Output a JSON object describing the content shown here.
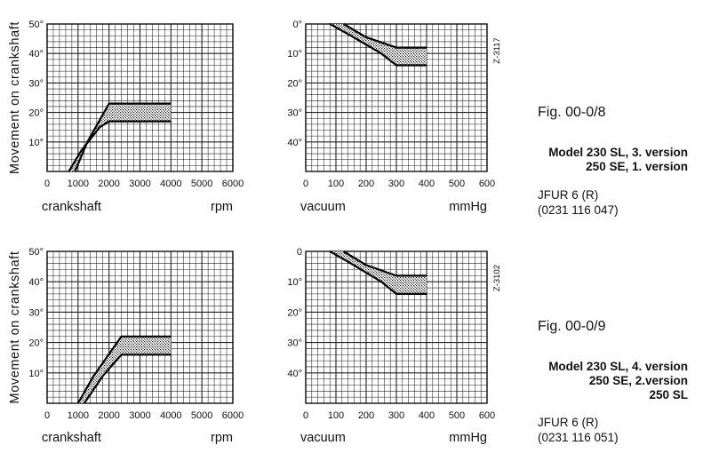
{
  "chart_data": [
    {
      "type": "area",
      "ylabel": "Movement on crankshaft",
      "xlabel": "crankshaft",
      "xunit": "rpm",
      "xlim": [
        0,
        6000
      ],
      "ylim": [
        0,
        50
      ],
      "xticks": [
        "0",
        "1000",
        "2000",
        "3000",
        "4000",
        "5000",
        "6000"
      ],
      "yticks": [
        "",
        "10°",
        "20°",
        "30°",
        "40°",
        "50°"
      ],
      "grid": true,
      "series": [
        {
          "x": [
            900,
            1300,
            2000,
            4000
          ],
          "y": [
            0,
            10,
            23,
            23
          ]
        },
        {
          "x": [
            700,
            1100,
            1700,
            2000,
            4000
          ],
          "y": [
            0,
            7,
            15,
            17,
            17
          ]
        }
      ]
    },
    {
      "type": "area",
      "xlabel": "vacuum",
      "xunit": "mmHg",
      "xlim": [
        0,
        600
      ],
      "ylim": [
        0,
        50
      ],
      "xticks": [
        "0",
        "100",
        "200",
        "300",
        "400",
        "500",
        "600"
      ],
      "yticks": [
        "0°",
        "10°",
        "20°",
        "30°",
        "40°",
        ""
      ],
      "y_inverted": true,
      "grid": true,
      "code": "Z-3117",
      "series": [
        {
          "x": [
            125,
            200,
            300,
            400
          ],
          "y": [
            0,
            4.5,
            8,
            8
          ]
        },
        {
          "x": [
            80,
            150,
            250,
            300,
            400
          ],
          "y": [
            0,
            4,
            10,
            14,
            14
          ]
        }
      ]
    },
    {
      "type": "area",
      "ylabel": "Movement on crankshaft",
      "xlabel": "crankshaft",
      "xunit": "rpm",
      "xlim": [
        0,
        6000
      ],
      "ylim": [
        0,
        50
      ],
      "xticks": [
        "0",
        "1000",
        "2000",
        "3000",
        "4000",
        "5000",
        "6000"
      ],
      "yticks": [
        "",
        "10°",
        "20°",
        "30°",
        "40°",
        "50°"
      ],
      "grid": true,
      "series": [
        {
          "x": [
            1000,
            1500,
            2400,
            4000
          ],
          "y": [
            0,
            9,
            22,
            22
          ]
        },
        {
          "x": [
            1200,
            1800,
            2400,
            4000
          ],
          "y": [
            0,
            9,
            16,
            16
          ]
        }
      ]
    },
    {
      "type": "area",
      "xlabel": "vacuum",
      "xunit": "mmHg",
      "xlim": [
        0,
        600
      ],
      "ylim": [
        0,
        50
      ],
      "xticks": [
        "0",
        "100",
        "200",
        "300",
        "400",
        "500",
        "600"
      ],
      "yticks": [
        "0",
        "10°",
        "20°",
        "30°",
        "40°",
        ""
      ],
      "y_inverted": true,
      "grid": true,
      "code": "Z-3102",
      "series": [
        {
          "x": [
            125,
            200,
            300,
            400
          ],
          "y": [
            0,
            4.5,
            8,
            8
          ]
        },
        {
          "x": [
            80,
            150,
            250,
            300,
            400
          ],
          "y": [
            0,
            4,
            10,
            14,
            14
          ]
        }
      ]
    }
  ],
  "fig1": {
    "label": "Fig. 00-0/8",
    "model_lines": [
      "Model 230 SL, 3. version",
      "250 SE, 1. version"
    ],
    "dist_lines": [
      "JFUR 6 (R)",
      "(0231 116 047)"
    ]
  },
  "fig2": {
    "label": "Fig. 00-0/9",
    "model_lines": [
      "Model 230 SL, 4. version",
      "250 SE, 2.version",
      "250 SL"
    ],
    "dist_lines": [
      "JFUR 6 (R)",
      "(0231 116 051)"
    ]
  }
}
